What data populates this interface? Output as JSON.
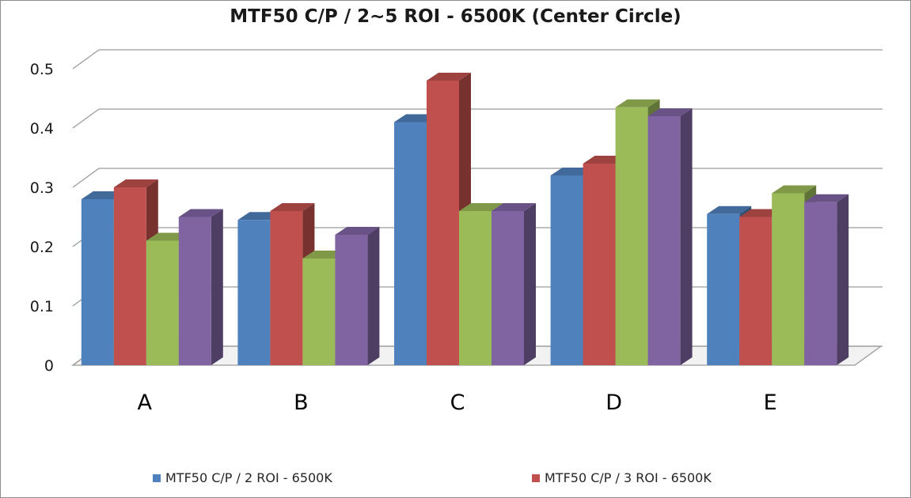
{
  "chart_data": {
    "type": "bar",
    "title": "MTF50 C/P / 2~5 ROI - 6500K (Center Circle)",
    "categories": [
      "A",
      "B",
      "C",
      "D",
      "E"
    ],
    "ylim": [
      0,
      0.5
    ],
    "yticks": [
      "0",
      "0.1",
      "0.2",
      "0.3",
      "0.4",
      "0.5"
    ],
    "grid": true,
    "legend_position": "bottom",
    "series": [
      {
        "name": "MTF50 C/P / 2 ROI - 6500K",
        "color": "#4f81bd",
        "values": [
          0.28,
          0.245,
          0.41,
          0.32,
          0.255
        ]
      },
      {
        "name": "MTF50 C/P / 3 ROI - 6500K",
        "color": "#c0504d",
        "values": [
          0.3,
          0.26,
          0.48,
          0.34,
          0.25
        ]
      },
      {
        "color": "#9bbb59",
        "values": [
          0.21,
          0.18,
          0.26,
          0.435,
          0.29
        ]
      },
      {
        "color": "#8064a2",
        "values": [
          0.25,
          0.22,
          0.26,
          0.42,
          0.275
        ]
      }
    ]
  }
}
